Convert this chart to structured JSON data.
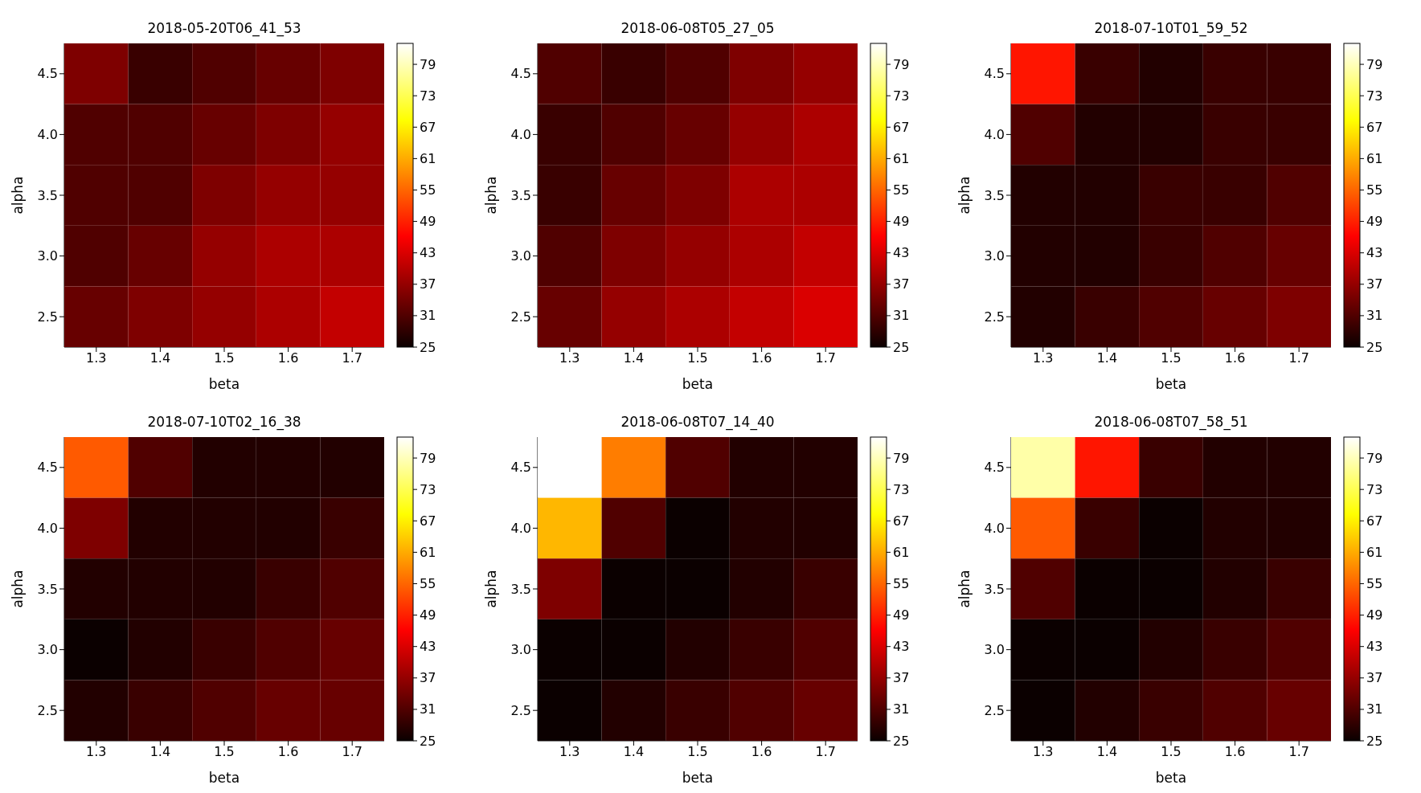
{
  "chart_data": [
    {
      "type": "heatmap",
      "title": "2018-05-20T06_41_53",
      "xlabel": "beta",
      "ylabel": "alpha",
      "categories": [
        "1.3",
        "1.4",
        "1.5",
        "1.6",
        "1.7"
      ],
      "y_categories": [
        "4.5",
        "4.0",
        "3.5",
        "3.0",
        "2.5"
      ],
      "cells": [
        [
          35,
          29,
          31,
          33,
          35
        ],
        [
          31,
          31,
          33,
          35,
          37
        ],
        [
          31,
          31,
          35,
          37,
          37
        ],
        [
          31,
          33,
          37,
          39,
          39
        ],
        [
          33,
          35,
          37,
          39,
          41
        ]
      ],
      "clim": [
        25,
        83
      ],
      "cticks": [
        25,
        31,
        37,
        43,
        49,
        55,
        61,
        67,
        73,
        79
      ]
    },
    {
      "type": "heatmap",
      "title": "2018-06-08T05_27_05",
      "xlabel": "beta",
      "ylabel": "alpha",
      "categories": [
        "1.3",
        "1.4",
        "1.5",
        "1.6",
        "1.7"
      ],
      "y_categories": [
        "4.5",
        "4.0",
        "3.5",
        "3.0",
        "2.5"
      ],
      "cells": [
        [
          31,
          29,
          31,
          35,
          37
        ],
        [
          29,
          31,
          33,
          37,
          39
        ],
        [
          29,
          33,
          35,
          39,
          39
        ],
        [
          31,
          35,
          37,
          39,
          41
        ],
        [
          33,
          37,
          39,
          41,
          43
        ]
      ],
      "clim": [
        25,
        83
      ],
      "cticks": [
        25,
        31,
        37,
        43,
        49,
        55,
        61,
        67,
        73,
        79
      ]
    },
    {
      "type": "heatmap",
      "title": "2018-07-10T01_59_52",
      "xlabel": "beta",
      "ylabel": "alpha",
      "categories": [
        "1.3",
        "1.4",
        "1.5",
        "1.6",
        "1.7"
      ],
      "y_categories": [
        "4.5",
        "4.0",
        "3.5",
        "3.0",
        "2.5"
      ],
      "cells": [
        [
          48,
          29,
          27,
          29,
          29
        ],
        [
          31,
          27,
          27,
          29,
          29
        ],
        [
          27,
          27,
          29,
          29,
          31
        ],
        [
          27,
          27,
          29,
          31,
          33
        ],
        [
          27,
          29,
          31,
          33,
          35
        ]
      ],
      "clim": [
        25,
        83
      ],
      "cticks": [
        25,
        31,
        37,
        43,
        49,
        55,
        61,
        67,
        73,
        79
      ]
    },
    {
      "type": "heatmap",
      "title": "2018-07-10T02_16_38",
      "xlabel": "beta",
      "ylabel": "alpha",
      "categories": [
        "1.3",
        "1.4",
        "1.5",
        "1.6",
        "1.7"
      ],
      "y_categories": [
        "4.5",
        "4.0",
        "3.5",
        "3.0",
        "2.5"
      ],
      "cells": [
        [
          54,
          31,
          27,
          27,
          27
        ],
        [
          35,
          27,
          27,
          27,
          29
        ],
        [
          27,
          27,
          27,
          29,
          31
        ],
        [
          25,
          27,
          29,
          31,
          33
        ],
        [
          27,
          29,
          31,
          33,
          33
        ]
      ],
      "clim": [
        25,
        83
      ],
      "cticks": [
        25,
        31,
        37,
        43,
        49,
        55,
        61,
        67,
        73,
        79
      ]
    },
    {
      "type": "heatmap",
      "title": "2018-06-08T07_14_40",
      "xlabel": "beta",
      "ylabel": "alpha",
      "categories": [
        "1.3",
        "1.4",
        "1.5",
        "1.6",
        "1.7"
      ],
      "y_categories": [
        "4.5",
        "4.0",
        "3.5",
        "3.0",
        "2.5"
      ],
      "cells": [
        [
          83,
          57,
          31,
          27,
          27
        ],
        [
          62,
          31,
          25,
          27,
          27
        ],
        [
          35,
          25,
          25,
          27,
          29
        ],
        [
          25,
          25,
          27,
          29,
          31
        ],
        [
          25,
          27,
          29,
          31,
          33
        ]
      ],
      "clim": [
        25,
        83
      ],
      "cticks": [
        25,
        31,
        37,
        43,
        49,
        55,
        61,
        67,
        73,
        79
      ]
    },
    {
      "type": "heatmap",
      "title": "2018-06-08T07_58_51",
      "xlabel": "beta",
      "ylabel": "alpha",
      "categories": [
        "1.3",
        "1.4",
        "1.5",
        "1.6",
        "1.7"
      ],
      "y_categories": [
        "4.5",
        "4.0",
        "3.5",
        "3.0",
        "2.5"
      ],
      "cells": [
        [
          78,
          48,
          29,
          27,
          27
        ],
        [
          54,
          29,
          25,
          27,
          27
        ],
        [
          31,
          25,
          25,
          27,
          29
        ],
        [
          25,
          25,
          27,
          29,
          31
        ],
        [
          25,
          27,
          29,
          31,
          33
        ]
      ],
      "clim": [
        25,
        83
      ],
      "cticks": [
        25,
        31,
        37,
        43,
        49,
        55,
        61,
        67,
        73,
        79
      ]
    }
  ]
}
